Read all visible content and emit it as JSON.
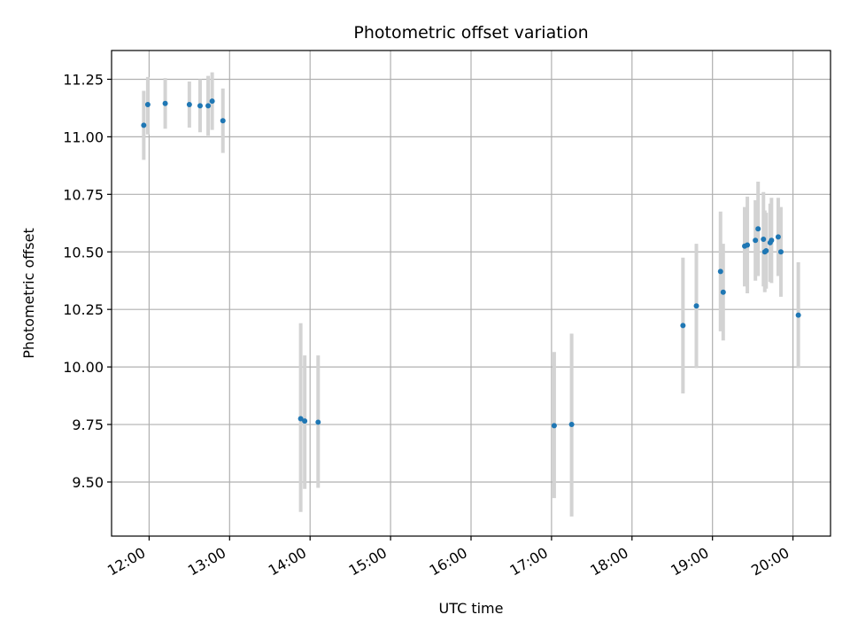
{
  "chart_data": {
    "type": "scatter",
    "title": "Photometric offset variation",
    "xlabel": "UTC time",
    "ylabel": "Photometric offset",
    "xlim": [
      "11:32",
      "20:28"
    ],
    "ylim": [
      9.265,
      11.375
    ],
    "x_ticks": [
      "12:00",
      "13:00",
      "14:00",
      "15:00",
      "16:00",
      "17:00",
      "18:00",
      "19:00",
      "20:00"
    ],
    "y_ticks": [
      9.5,
      9.75,
      10.0,
      10.25,
      10.5,
      10.75,
      11.0,
      11.25
    ],
    "y_tick_labels": [
      "9.50",
      "9.75",
      "10.00",
      "10.25",
      "10.50",
      "10.75",
      "11.00",
      "11.25"
    ],
    "grid": true,
    "colors": {
      "marker": "#1f77b4",
      "errorbar": "#d3d3d3",
      "grid": "#b0b0b0"
    },
    "points": [
      {
        "time": "11:56",
        "value": 11.05,
        "lower": 10.9,
        "upper": 11.2
      },
      {
        "time": "11:59",
        "value": 11.14,
        "lower": 11.01,
        "upper": 11.26
      },
      {
        "time": "12:12",
        "value": 11.145,
        "lower": 11.035,
        "upper": 11.255
      },
      {
        "time": "12:30",
        "value": 11.14,
        "lower": 11.04,
        "upper": 11.24
      },
      {
        "time": "12:38",
        "value": 11.135,
        "lower": 11.02,
        "upper": 11.25
      },
      {
        "time": "12:44",
        "value": 11.135,
        "lower": 11.005,
        "upper": 11.265
      },
      {
        "time": "12:47",
        "value": 11.155,
        "lower": 11.03,
        "upper": 11.28
      },
      {
        "time": "12:55",
        "value": 11.07,
        "lower": 10.93,
        "upper": 11.21
      },
      {
        "time": "13:53",
        "value": 9.775,
        "lower": 9.37,
        "upper": 10.19
      },
      {
        "time": "13:56",
        "value": 9.765,
        "lower": 9.47,
        "upper": 10.05
      },
      {
        "time": "14:06",
        "value": 9.76,
        "lower": 9.475,
        "upper": 10.05
      },
      {
        "time": "17:02",
        "value": 9.745,
        "lower": 9.43,
        "upper": 10.065
      },
      {
        "time": "17:15",
        "value": 9.75,
        "lower": 9.35,
        "upper": 10.145
      },
      {
        "time": "18:38",
        "value": 10.18,
        "lower": 9.885,
        "upper": 10.475
      },
      {
        "time": "18:48",
        "value": 10.265,
        "lower": 9.995,
        "upper": 10.535
      },
      {
        "time": "19:06",
        "value": 10.415,
        "lower": 10.155,
        "upper": 10.675
      },
      {
        "time": "19:08",
        "value": 10.325,
        "lower": 10.115,
        "upper": 10.535
      },
      {
        "time": "19:24",
        "value": 10.525,
        "lower": 10.35,
        "upper": 10.695
      },
      {
        "time": "19:26",
        "value": 10.53,
        "lower": 10.32,
        "upper": 10.74
      },
      {
        "time": "19:32",
        "value": 10.55,
        "lower": 10.375,
        "upper": 10.725
      },
      {
        "time": "19:34",
        "value": 10.6,
        "lower": 10.395,
        "upper": 10.805
      },
      {
        "time": "19:38",
        "value": 10.555,
        "lower": 10.35,
        "upper": 10.76
      },
      {
        "time": "19:39",
        "value": 10.5,
        "lower": 10.325,
        "upper": 10.68
      },
      {
        "time": "19:40",
        "value": 10.505,
        "lower": 10.34,
        "upper": 10.67
      },
      {
        "time": "19:43",
        "value": 10.54,
        "lower": 10.37,
        "upper": 10.71
      },
      {
        "time": "19:44",
        "value": 10.55,
        "lower": 10.365,
        "upper": 10.735
      },
      {
        "time": "19:49",
        "value": 10.565,
        "lower": 10.395,
        "upper": 10.735
      },
      {
        "time": "19:51",
        "value": 10.5,
        "lower": 10.305,
        "upper": 10.695
      },
      {
        "time": "20:04",
        "value": 10.225,
        "lower": 9.995,
        "upper": 10.455
      }
    ]
  }
}
